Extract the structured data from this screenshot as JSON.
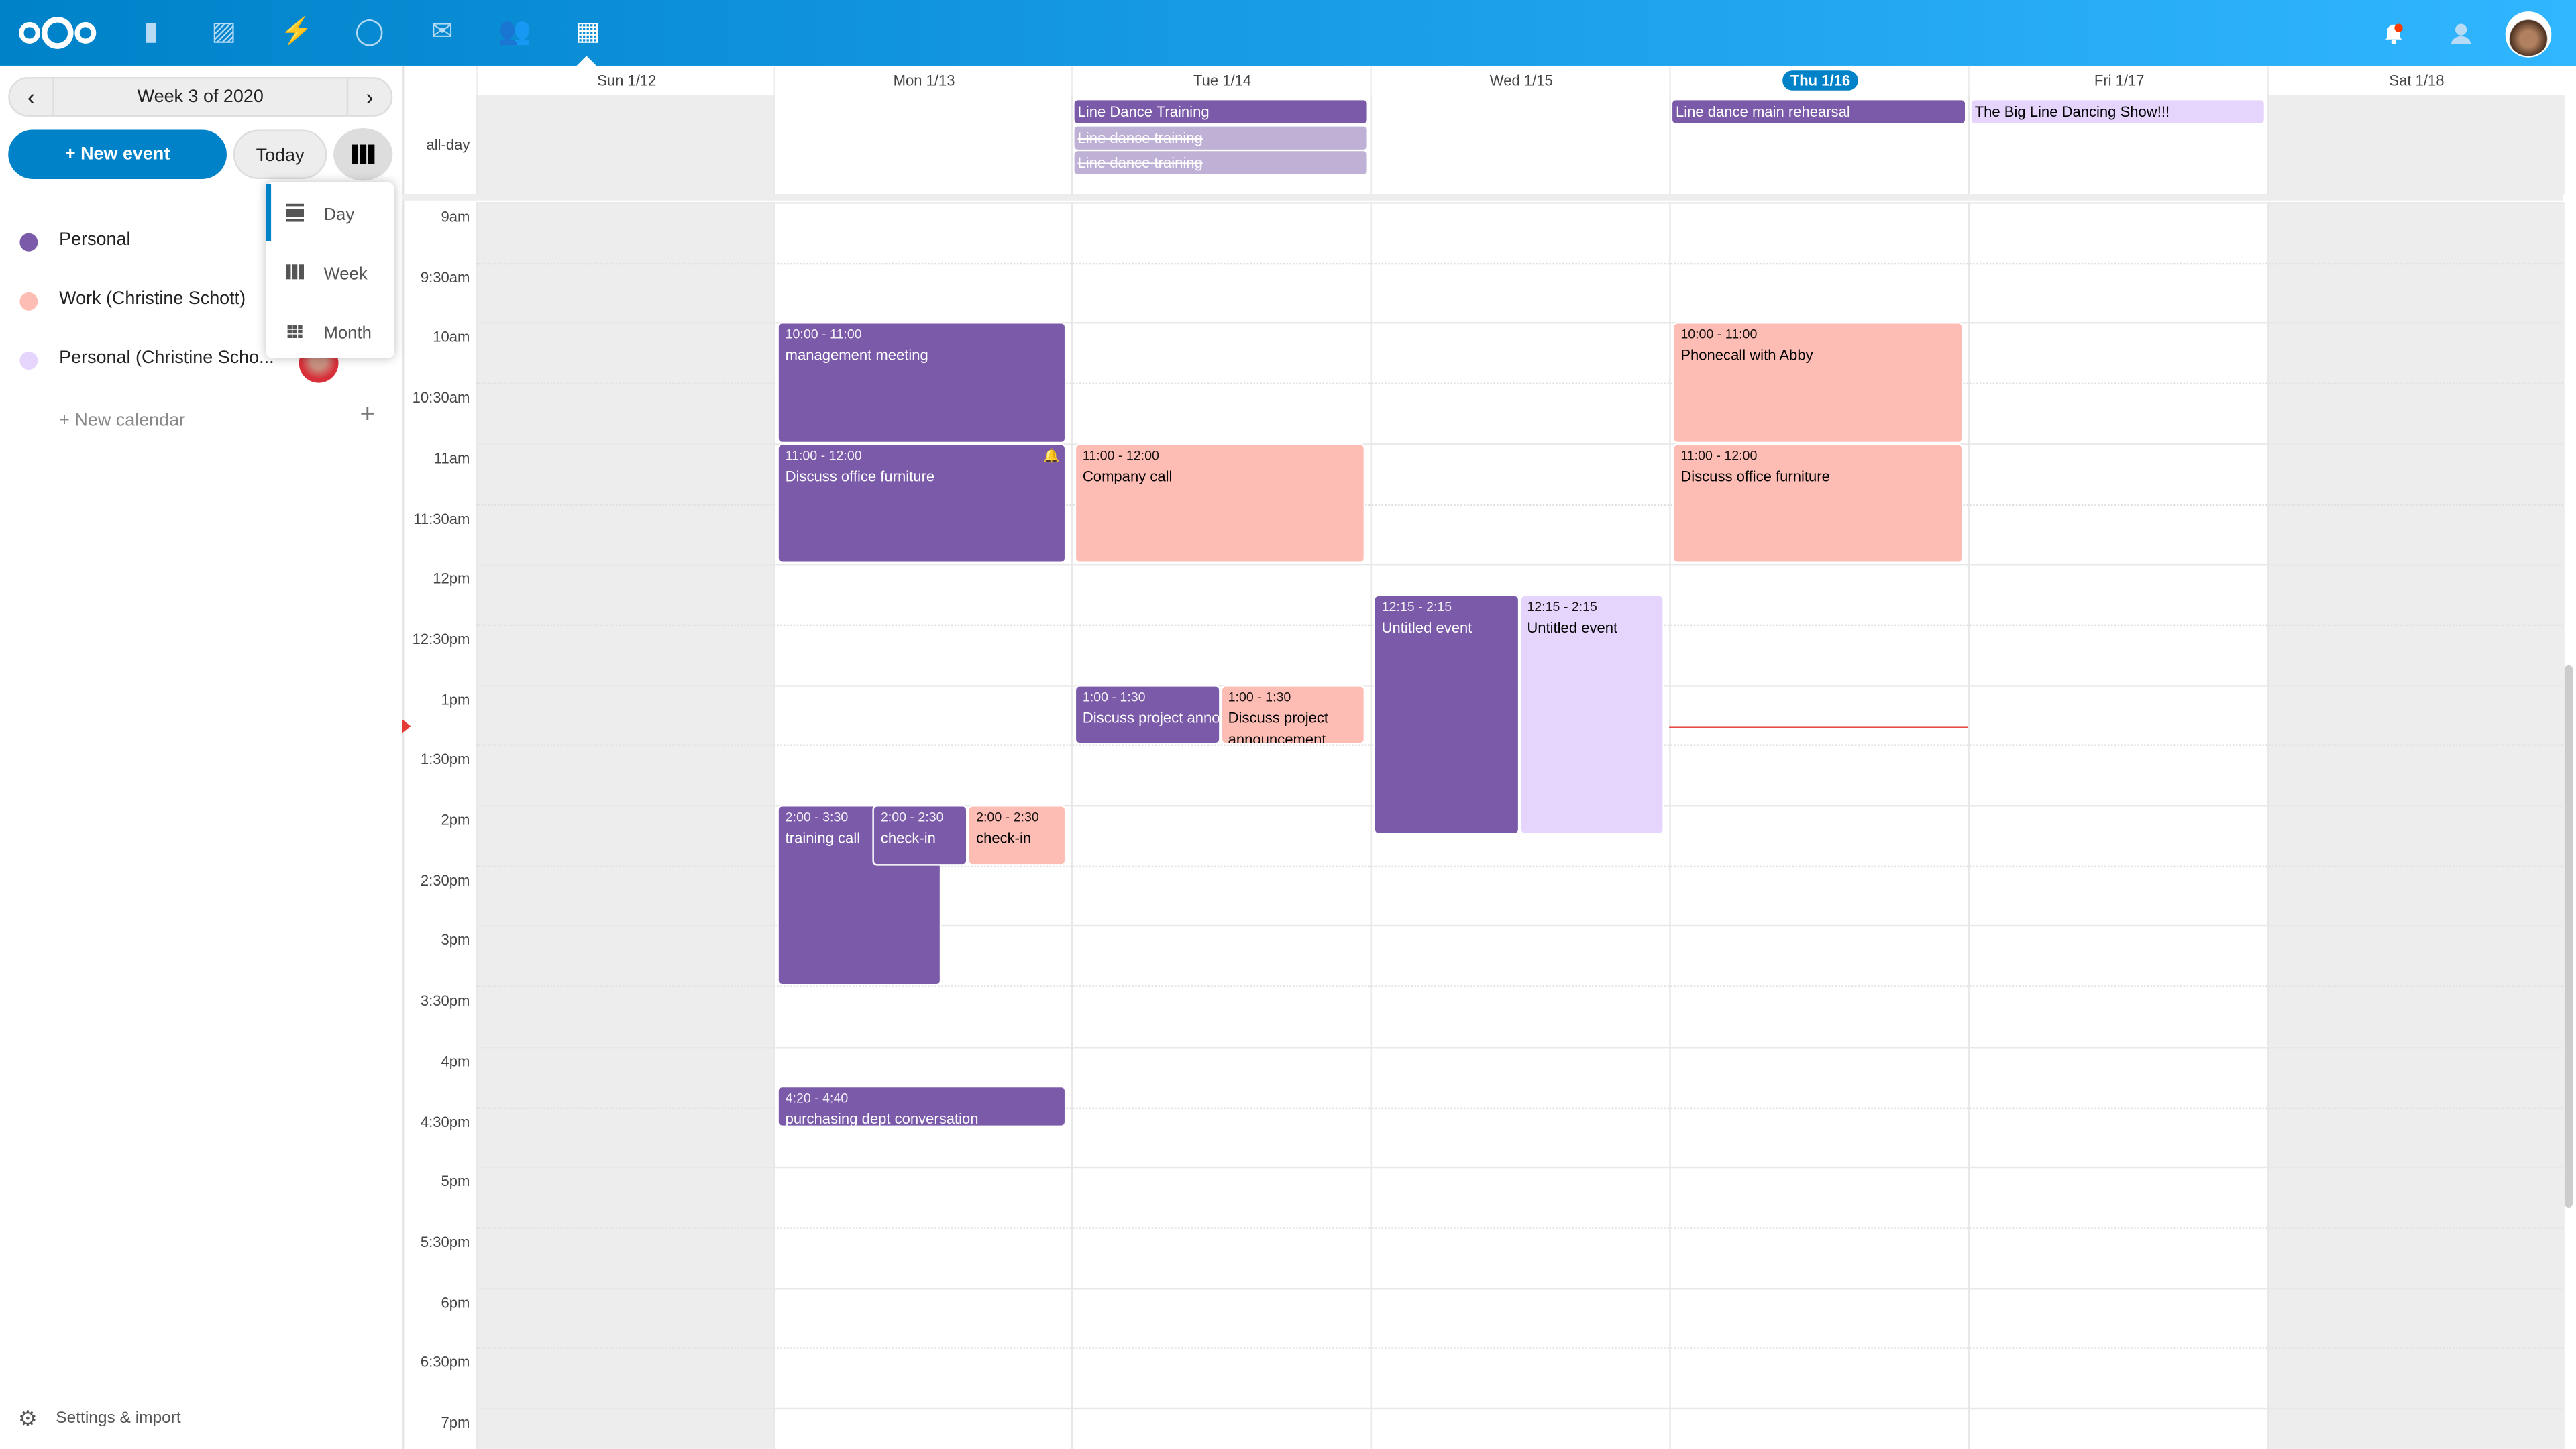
{
  "header": {
    "apps": [
      {
        "name": "files-icon",
        "glyph": "▮"
      },
      {
        "name": "photos-icon",
        "glyph": "▨"
      },
      {
        "name": "activity-icon",
        "glyph": "⚡"
      },
      {
        "name": "talk-icon",
        "glyph": "◯"
      },
      {
        "name": "mail-icon",
        "glyph": "✉"
      },
      {
        "name": "contacts-icon",
        "glyph": "👥"
      },
      {
        "name": "calendar-icon",
        "glyph": "▦"
      }
    ],
    "notification_dot_color": "#ff3b00"
  },
  "sidebar": {
    "week_label": "Week 3 of 2020",
    "new_event": "+ New event",
    "today": "Today",
    "view_menu": {
      "items": [
        {
          "label": "Day"
        },
        {
          "label": "Week"
        },
        {
          "label": "Month"
        }
      ],
      "active": "Day"
    },
    "calendars": [
      {
        "label": "Personal",
        "color": "#7a5aa9"
      },
      {
        "label": "Work (Christine Schott)",
        "color": "#fdbdb5"
      },
      {
        "label": "Personal (Christine Scho...",
        "color": "#e5d5fc"
      }
    ],
    "more": "•••",
    "new_calendar": "+ New calendar",
    "settings": "Settings & import"
  },
  "grid": {
    "days": [
      {
        "label": "Sun 1/12",
        "weekend": true
      },
      {
        "label": "Mon 1/13"
      },
      {
        "label": "Tue 1/14"
      },
      {
        "label": "Wed 1/15"
      },
      {
        "label": "Thu 1/16",
        "today": true
      },
      {
        "label": "Fri 1/17"
      },
      {
        "label": "Sat 1/18",
        "weekend": true
      }
    ],
    "allday_label": "all-day",
    "times": [
      "9am",
      "9:30am",
      "10am",
      "10:30am",
      "11am",
      "11:30am",
      "12pm",
      "12:30pm",
      "1pm",
      "1:30pm",
      "2pm",
      "2:30pm",
      "3pm",
      "3:30pm",
      "4pm",
      "4:30pm",
      "5pm",
      "5:30pm",
      "6pm",
      "6:30pm",
      "7pm"
    ],
    "now": "13:21",
    "allday_events": [
      {
        "day": 2,
        "title": "Line Dance Training",
        "color": "#7a5aa9",
        "text": "#fff"
      },
      {
        "day": 2,
        "title": "Line dance training",
        "color": "#bfb0d6",
        "text": "#fff",
        "cancelled": true
      },
      {
        "day": 2,
        "title": "Line dance training",
        "color": "#bfb0d6",
        "text": "#fff",
        "cancelled": true
      },
      {
        "day": 4,
        "title": "Line dance main rehearsal",
        "color": "#7a5aa9",
        "text": "#fff"
      },
      {
        "day": 5,
        "title": "The Big Line Dancing Show!!!",
        "color": "#e5d5fc",
        "text": "#000"
      }
    ],
    "events": [
      {
        "day": 1,
        "time": "10:00 - 11:00",
        "title": "management meeting",
        "start": "10:00",
        "end": "11:00",
        "color": "#7a5aa9",
        "text": "#fff"
      },
      {
        "day": 1,
        "time": "11:00 - 12:00",
        "title": "Discuss office furniture",
        "start": "11:00",
        "end": "12:00",
        "color": "#7a5aa9",
        "text": "#fff",
        "alarm": true
      },
      {
        "day": 1,
        "time": "2:00 - 3:30",
        "title": "training call",
        "start": "14:00",
        "end": "15:30",
        "color": "#7a5aa9",
        "text": "#fff"
      },
      {
        "day": 1,
        "time": "2:00 - 2:30",
        "title": "check-in",
        "start": "14:00",
        "end": "14:30",
        "color": "#7a5aa9",
        "text": "#fff"
      },
      {
        "day": 1,
        "time": "2:00 - 2:30",
        "title": "check-in",
        "start": "14:00",
        "end": "14:30",
        "color": "#fdbdb5",
        "text": "#000"
      },
      {
        "day": 1,
        "time": "4:20 - 4:40",
        "title": "purchasing dept conversation",
        "start": "16:20",
        "end": "16:40",
        "color": "#7a5aa9",
        "text": "#fff"
      },
      {
        "day": 2,
        "time": "11:00 - 12:00",
        "title": "Company call",
        "start": "11:00",
        "end": "12:00",
        "color": "#fdbdb5",
        "text": "#000"
      },
      {
        "day": 2,
        "time": "1:00 - 1:30",
        "title": "Discuss project announcement",
        "start": "13:00",
        "end": "13:30",
        "color": "#7a5aa9",
        "text": "#fff"
      },
      {
        "day": 2,
        "time": "1:00 - 1:30",
        "title": "Discuss project announcement",
        "start": "13:00",
        "end": "13:30",
        "color": "#fdbdb5",
        "text": "#000",
        "wrap": true
      },
      {
        "day": 3,
        "time": "12:15 - 2:15",
        "title": "Untitled event",
        "start": "12:15",
        "end": "14:15",
        "color": "#7a5aa9",
        "text": "#fff"
      },
      {
        "day": 3,
        "time": "12:15 - 2:15",
        "title": "Untitled event",
        "start": "12:15",
        "end": "14:15",
        "color": "#e5d5fc",
        "text": "#000"
      },
      {
        "day": 4,
        "time": "10:00 - 11:00",
        "title": "Phonecall with Abby",
        "start": "10:00",
        "end": "11:00",
        "color": "#fdbdb5",
        "text": "#000"
      },
      {
        "day": 4,
        "time": "11:00 - 12:00",
        "title": "Discuss office furniture",
        "start": "11:00",
        "end": "12:00",
        "color": "#fdbdb5",
        "text": "#000"
      }
    ]
  }
}
